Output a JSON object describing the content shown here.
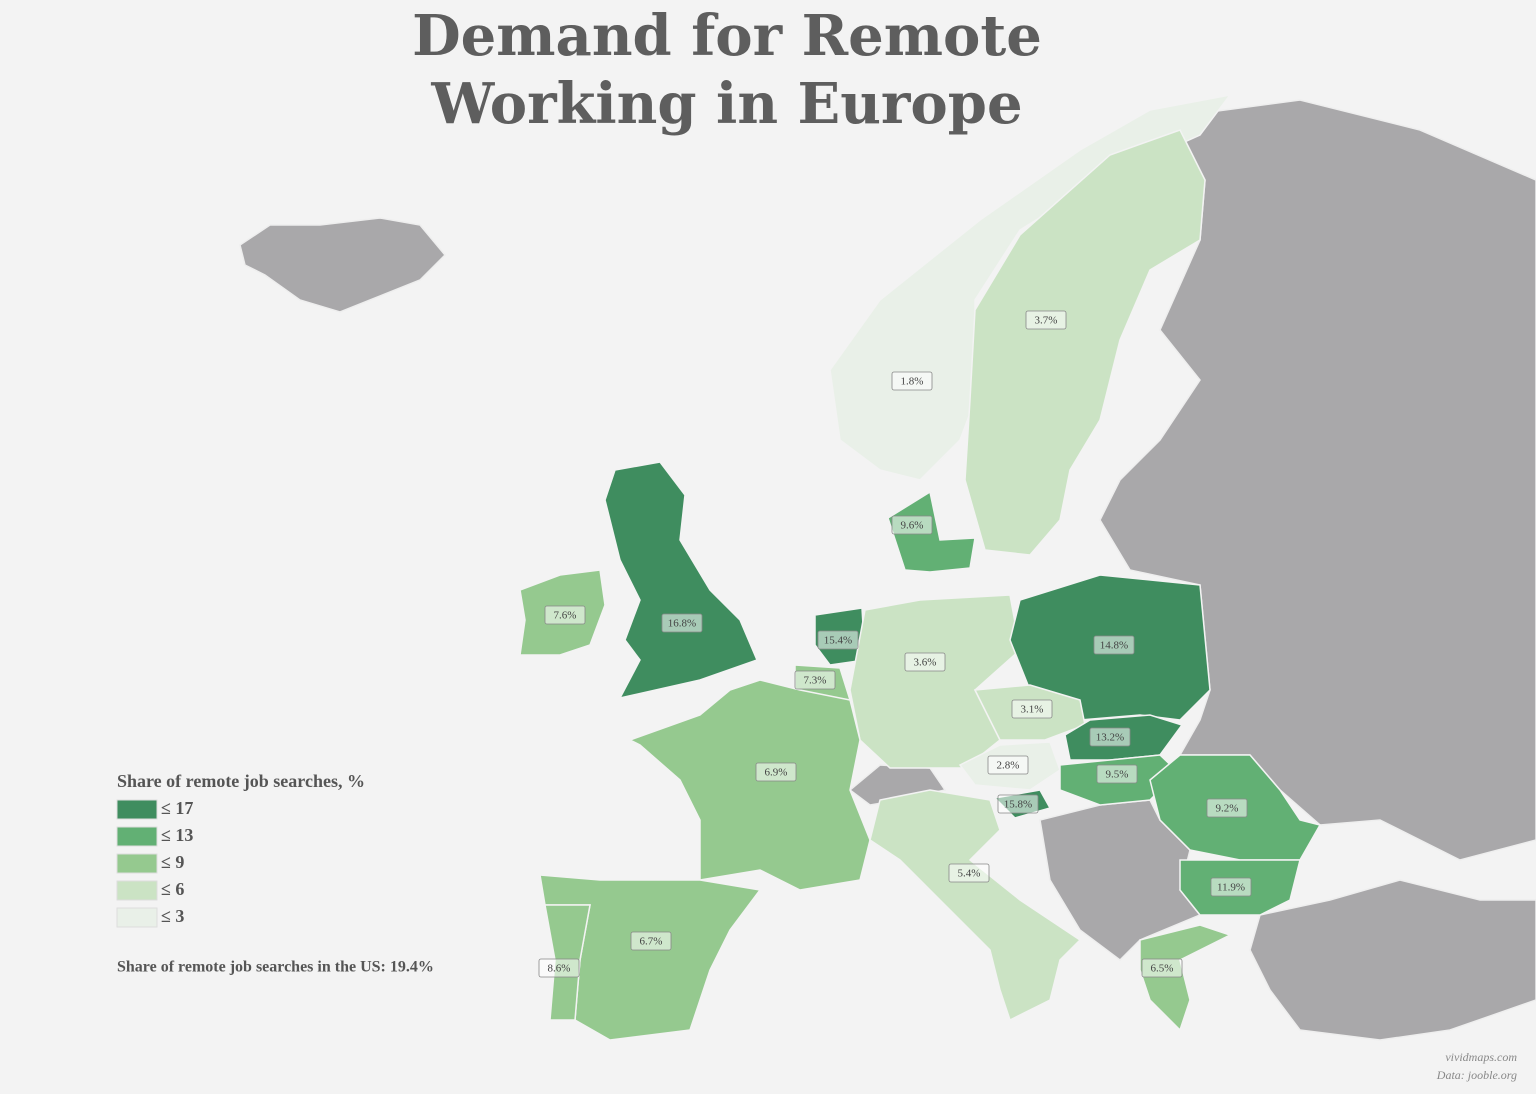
{
  "title": "Demand for Remote Working in Europe",
  "legend": {
    "title": "Share of remote job searches, %",
    "bins": [
      {
        "value": 17,
        "label": "≤ 17",
        "color": "#3f8d5f"
      },
      {
        "value": 13,
        "label": "≤ 13",
        "color": "#62b074"
      },
      {
        "value": 9,
        "label": "≤ 9",
        "color": "#95c98f"
      },
      {
        "value": 6,
        "label": "≤ 6",
        "color": "#cbe3c4"
      },
      {
        "value": 3,
        "label": "≤ 3",
        "color": "#e9f0e8"
      }
    ]
  },
  "note": "Share of remote job searches in the US: 19.4%",
  "credits": [
    "vividmaps.com",
    "Data: jooble.org"
  ],
  "regions": [
    {
      "value": 16.8,
      "label": "16.8%"
    },
    {
      "value": 7.6,
      "label": "7.6%"
    },
    {
      "value": 1.8,
      "label": "1.8%"
    },
    {
      "value": 3.7,
      "label": "3.7%"
    },
    {
      "value": 9.6,
      "label": "9.6%"
    },
    {
      "value": 15.4,
      "label": "15.4%"
    },
    {
      "value": 7.3,
      "label": "7.3%"
    },
    {
      "value": 3.6,
      "label": "3.6%"
    },
    {
      "value": 14.8,
      "label": "14.8%"
    },
    {
      "value": 3.1,
      "label": "3.1%"
    },
    {
      "value": 13.2,
      "label": "13.2%"
    },
    {
      "value": 2.8,
      "label": "2.8%"
    },
    {
      "value": 9.5,
      "label": "9.5%"
    },
    {
      "value": 15.8,
      "label": "15.8%"
    },
    {
      "value": 9.2,
      "label": "9.2%"
    },
    {
      "value": 11.9,
      "label": "11.9%"
    },
    {
      "value": 6.9,
      "label": "6.9%"
    },
    {
      "value": 6.7,
      "label": "6.7%"
    },
    {
      "value": 8.6,
      "label": "8.6%"
    },
    {
      "value": 5.4,
      "label": "5.4%"
    },
    {
      "value": 6.5,
      "label": "6.5%"
    }
  ]
}
